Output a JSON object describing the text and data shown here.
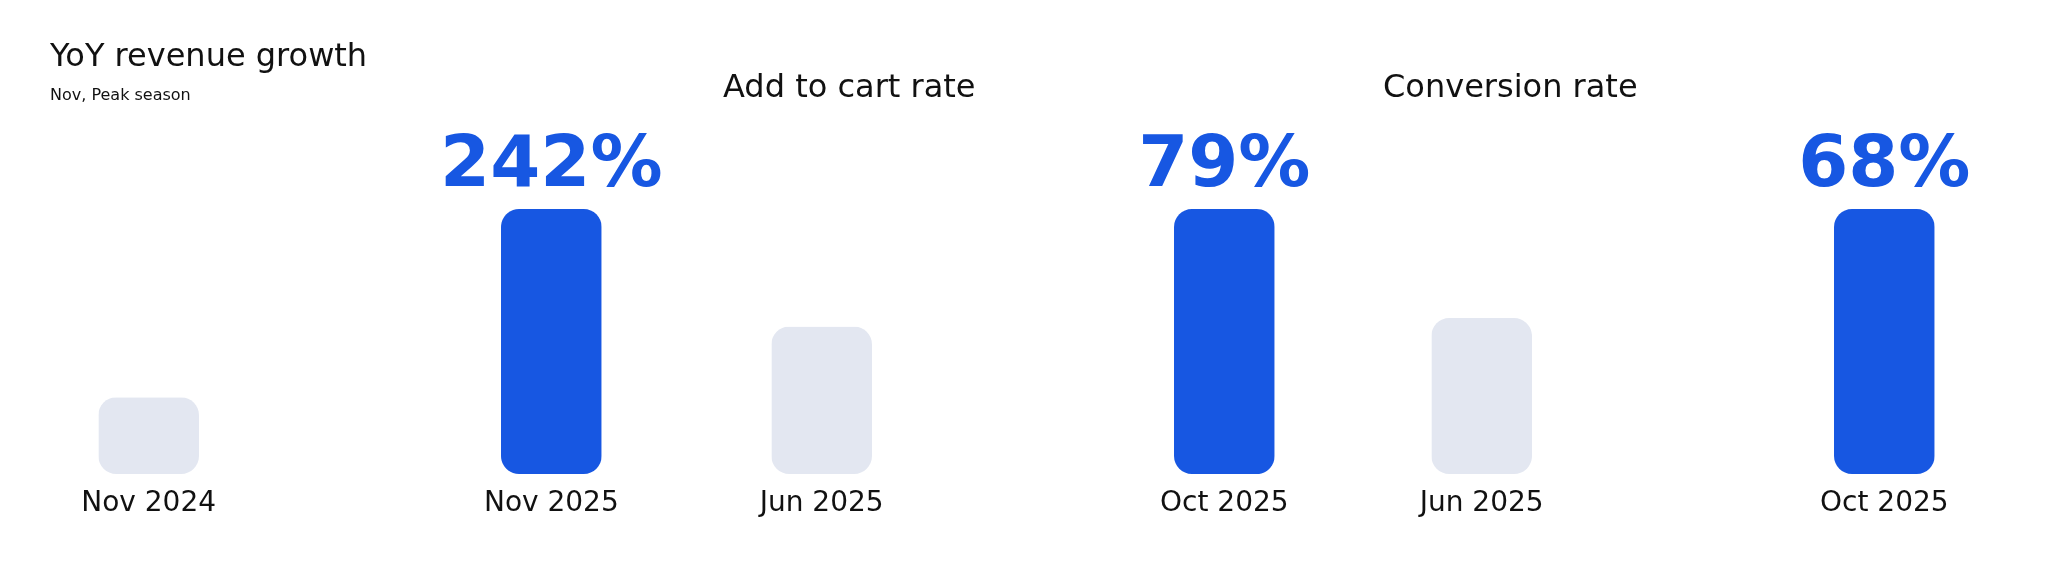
{
  "chart_data": [
    {
      "type": "bar",
      "title": "YoY revenue growth",
      "subtitle": "Nov, Peak season",
      "categories": [
        "Nov 2024",
        "Nov 2025"
      ],
      "values": [
        70,
        242
      ],
      "colors": [
        "#e3e7f1",
        "#1757e2"
      ],
      "value_labels": [
        null,
        "242%"
      ],
      "tick_labels": "x"
    },
    {
      "type": "bar",
      "title": "Add to cart rate",
      "categories": [
        "Jun 2025",
        "Oct 2025"
      ],
      "values": [
        44,
        79
      ],
      "colors": [
        "#e3e7f1",
        "#1757e2"
      ],
      "value_labels": [
        null,
        "79%"
      ],
      "tick_labels": "x"
    },
    {
      "type": "bar",
      "title": "Conversion rate",
      "categories": [
        "Jun 2025",
        "Oct 2025"
      ],
      "values": [
        40,
        68
      ],
      "colors": [
        "#e3e7f1",
        "#1757e2"
      ],
      "value_labels": [
        null,
        "68%"
      ],
      "tick_labels": "x"
    }
  ]
}
